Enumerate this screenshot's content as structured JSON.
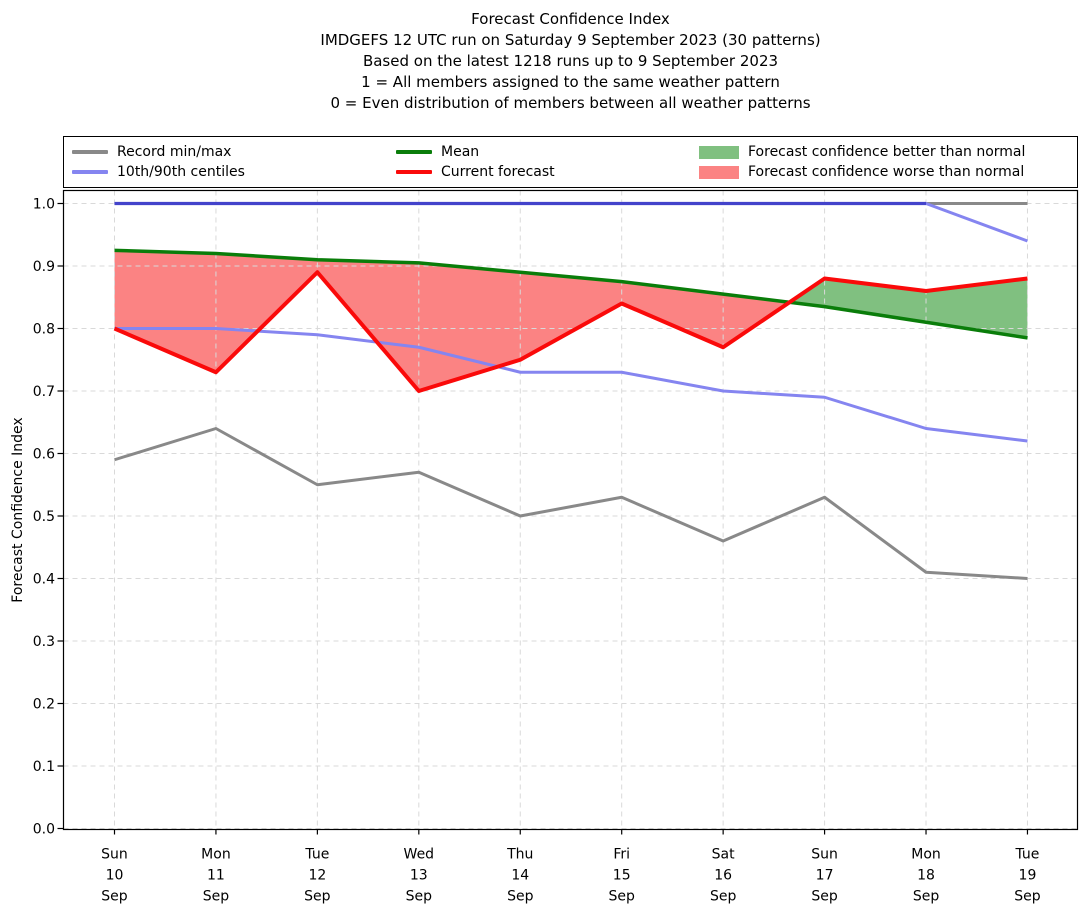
{
  "title": {
    "line1": "Forecast Confidence Index",
    "line2": "IMDGEFS 12 UTC run on Saturday 9 September 2023 (30 patterns)",
    "line3": "Based on the latest 1218 runs up to 9 September 2023",
    "line4": "1 = All members assigned to the same weather pattern",
    "line5": "0 = Even distribution of members between all weather patterns"
  },
  "legend": {
    "entries": [
      {
        "label": "Record min/max",
        "swatch": "line",
        "color": "#898989"
      },
      {
        "label": "10th/90th centiles",
        "swatch": "line",
        "color": "#8585f0"
      },
      {
        "label": "Mean",
        "swatch": "line",
        "color": "#0a7d0a"
      },
      {
        "label": "Current forecast",
        "swatch": "line",
        "color": "#fa0a0a"
      },
      {
        "label": "Forecast confidence better than normal",
        "swatch": "patch",
        "color": "#80c080"
      },
      {
        "label": "Forecast confidence worse than normal",
        "swatch": "patch",
        "color": "#fb8383"
      }
    ]
  },
  "chart_data": {
    "type": "line",
    "title": "Forecast Confidence Index",
    "xlabel": "",
    "ylabel": "Forecast Confidence Index",
    "ylim": [
      0.0,
      1.02
    ],
    "ytick_min": 0.0,
    "ytick_max": 1.0,
    "ytick_step": 0.1,
    "grid": true,
    "legend_position": "top",
    "categories": [
      "Sun 10 Sep",
      "Mon 11 Sep",
      "Tue 12 Sep",
      "Wed 13 Sep",
      "Thu 14 Sep",
      "Fri 15 Sep",
      "Sat 16 Sep",
      "Sun 17 Sep",
      "Mon 18 Sep",
      "Tue 19 Sep"
    ],
    "series": [
      {
        "role": "record_max",
        "name": "Record max",
        "color": "#898989",
        "width": 3,
        "values": [
          1.0,
          1.0,
          1.0,
          1.0,
          1.0,
          1.0,
          1.0,
          1.0,
          1.0,
          1.0
        ]
      },
      {
        "role": "record_min",
        "name": "Record min",
        "color": "#898989",
        "width": 3,
        "values": [
          0.59,
          0.64,
          0.55,
          0.57,
          0.5,
          0.53,
          0.46,
          0.53,
          0.41,
          0.4
        ]
      },
      {
        "role": "c90",
        "name": "90th centile",
        "color": "#8585f0",
        "width": 3,
        "values": [
          1.0,
          1.0,
          1.0,
          1.0,
          1.0,
          1.0,
          1.0,
          1.0,
          1.0,
          0.94
        ]
      },
      {
        "role": "c10",
        "name": "10th centile",
        "color": "#8585f0",
        "width": 3,
        "values": [
          0.8,
          0.8,
          0.79,
          0.77,
          0.73,
          0.73,
          0.7,
          0.69,
          0.64,
          0.62
        ]
      },
      {
        "role": "mean",
        "name": "Mean",
        "color": "#0a7d0a",
        "width": 3.5,
        "values": [
          0.925,
          0.92,
          0.91,
          0.905,
          0.89,
          0.875,
          0.855,
          0.835,
          0.81,
          0.785
        ]
      },
      {
        "role": "forecast",
        "name": "Current forecast",
        "color": "#fa0a0a",
        "width": 4,
        "values": [
          0.8,
          0.73,
          0.89,
          0.7,
          0.75,
          0.84,
          0.77,
          0.88,
          0.86,
          0.88
        ]
      }
    ],
    "centile_overlap_color": "#4343cb",
    "fill_better_color": "#80c080",
    "fill_worse_color": "#fb8383",
    "grid_color": "#d9d9d9"
  }
}
